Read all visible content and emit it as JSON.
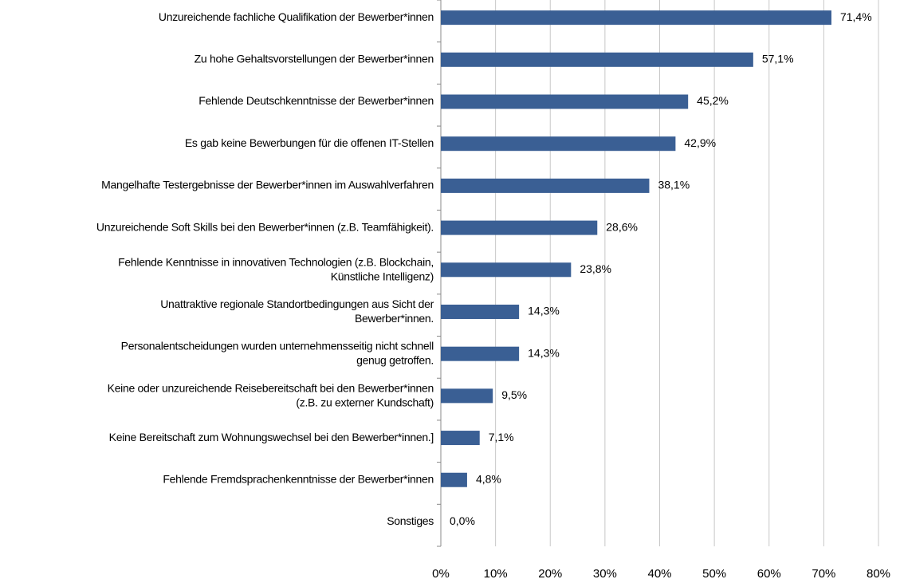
{
  "chart_data": {
    "type": "bar",
    "orientation": "horizontal",
    "categories": [
      "Unzureichende fachliche Qualifikation der Bewerber*innen",
      "Zu hohe Gehaltsvorstellungen der Bewerber*innen",
      "Fehlende Deutschkenntnisse der Bewerber*innen",
      "Es gab keine Bewerbungen für die offenen IT-Stellen",
      "Mangelhafte Testergebnisse der Bewerber*innen im Auswahlverfahren",
      "Unzureichende Soft Skills bei den Bewerber*innen (z.B. Teamfähigkeit).",
      "Fehlende Kenntnisse in innovativen Technologien (z.B. Blockchain,\nKünstliche Intelligenz)",
      "Unattraktive regionale Standortbedingungen aus Sicht der\nBewerber*innen.",
      "Personalentscheidungen wurden unternehmensseitig nicht schnell\ngenug getroffen.",
      "Keine oder unzureichende Reisebereitschaft bei den Bewerber*innen\n(z.B. zu externer Kundschaft)",
      "Keine Bereitschaft zum Wohnungswechsel bei den Bewerber*innen.]",
      "Fehlende Fremdsprachenkenntnisse der Bewerber*innen",
      "Sonstiges"
    ],
    "values": [
      71.4,
      57.1,
      45.2,
      42.9,
      38.1,
      28.6,
      23.8,
      14.3,
      14.3,
      9.5,
      7.1,
      4.8,
      0.0
    ],
    "value_labels": [
      "71,4%",
      "57,1%",
      "45,2%",
      "42,9%",
      "38,1%",
      "28,6%",
      "23,8%",
      "14,3%",
      "14,3%",
      "9,5%",
      "7,1%",
      "4,8%",
      "0,0%"
    ],
    "color": "#3a5f94",
    "xlim": [
      0,
      80
    ],
    "xticks": [
      {
        "value": 0,
        "label": "0%"
      },
      {
        "value": 10,
        "label": "10%"
      },
      {
        "value": 20,
        "label": "20%"
      },
      {
        "value": 30,
        "label": "30%"
      },
      {
        "value": 40,
        "label": "40%"
      },
      {
        "value": 50,
        "label": "50%"
      },
      {
        "value": 60,
        "label": "60%"
      },
      {
        "value": 70,
        "label": "70%"
      },
      {
        "value": 80,
        "label": "80%"
      }
    ],
    "grid": true
  }
}
